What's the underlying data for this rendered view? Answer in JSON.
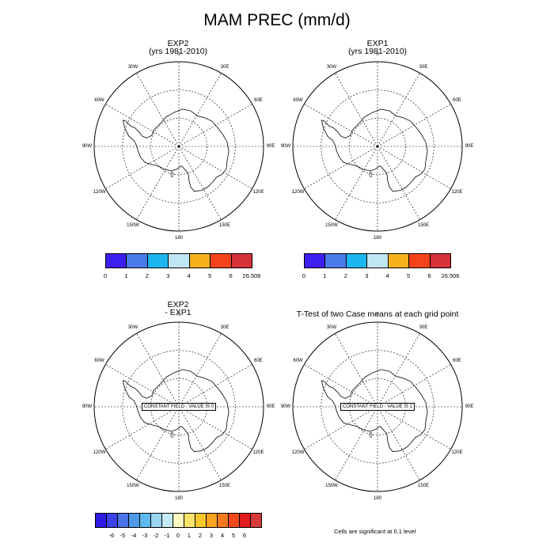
{
  "title": "MAM PREC (mm/d)",
  "lon_labels": [
    "0",
    "30E",
    "60E",
    "90E",
    "120E",
    "150E",
    "180",
    "150W",
    "120W",
    "90W",
    "60W",
    "30W"
  ],
  "panels": [
    {
      "title_line1": "EXP2",
      "title_line2": "(yrs 1981-2010)"
    },
    {
      "title_line1": "EXP1",
      "title_line2": "(yrs 1981-2010)"
    },
    {
      "title_line1": "EXP2",
      "title_line2": "- EXP1",
      "constant_field": "CONSTANT FIELD - VALUE IS 0"
    },
    {
      "title": "T-Test of two Case means at each grid point",
      "constant_field": "CONSTANT FIELD - VALUE IS 1"
    }
  ],
  "colorbar_abs": {
    "colors": [
      "#3e1ff2",
      "#4a79e8",
      "#1cb6f0",
      "#bfe6f5",
      "#f5b21d",
      "#f5421b",
      "#d6303a"
    ],
    "labels": [
      "0",
      "1",
      "2",
      "3",
      "4",
      "5",
      "6",
      "26.506"
    ]
  },
  "colorbar_diff": {
    "colors": [
      "#2e1ae0",
      "#3a42e8",
      "#4a74e8",
      "#4e9ae6",
      "#5cb9ef",
      "#98d6f2",
      "#c6eaf6",
      "#fcf9c2",
      "#fce46b",
      "#f9c92a",
      "#f9a31e",
      "#f77a1e",
      "#f2481b",
      "#e01b1b",
      "#d53a3a"
    ],
    "labels": [
      "-6",
      "-5",
      "-4",
      "-3",
      "-2",
      "-1",
      "0",
      "1",
      "2",
      "3",
      "4",
      "5",
      "6"
    ]
  },
  "footnote": "Cells are significant at 0.1 level"
}
